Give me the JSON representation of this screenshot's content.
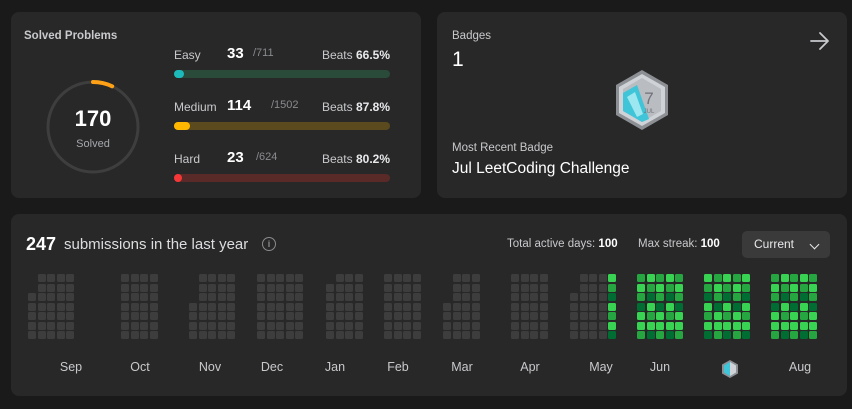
{
  "solved": {
    "title": "Solved Problems",
    "total": "170",
    "total_label": "Solved",
    "ring_fraction": 0.07,
    "difficulties": [
      {
        "name": "Easy",
        "count": "33",
        "total": "/711",
        "beats_label": "Beats",
        "beats": "66.5%",
        "fraction": 0.046,
        "color": "#1cbaba",
        "track": "#2a4a3a"
      },
      {
        "name": "Medium",
        "count": "114",
        "total": "/1502",
        "beats_label": "Beats",
        "beats": "87.8%",
        "fraction": 0.076,
        "color": "#ffb700",
        "track": "#5a4a1e"
      },
      {
        "name": "Hard",
        "count": "23",
        "total": "/624",
        "beats_label": "Beats",
        "beats": "80.2%",
        "fraction": 0.037,
        "color": "#f63737",
        "track": "#5a2a28"
      }
    ]
  },
  "badges": {
    "label": "Badges",
    "count": "1",
    "recent_label": "Most Recent Badge",
    "recent_name": "Jul LeetCoding Challenge",
    "badge_month_text": "JUL",
    "badge_number": "7"
  },
  "calendar": {
    "count": "247",
    "text": "submissions in the last year",
    "active_label": "Total active days:",
    "active_value": "100",
    "streak_label": "Max streak:",
    "streak_value": "100",
    "dropdown": "Current",
    "months": [
      "Sep",
      "Oct",
      "Nov",
      "Dec",
      "Jan",
      "Feb",
      "Mar",
      "Apr",
      "May",
      "Jun",
      "Aug"
    ],
    "colors": {
      "empty": "#3d3d3d",
      "l1": "#0e4429",
      "l2": "#006d32",
      "l3": "#26a641",
      "l4": "#39d353"
    }
  }
}
